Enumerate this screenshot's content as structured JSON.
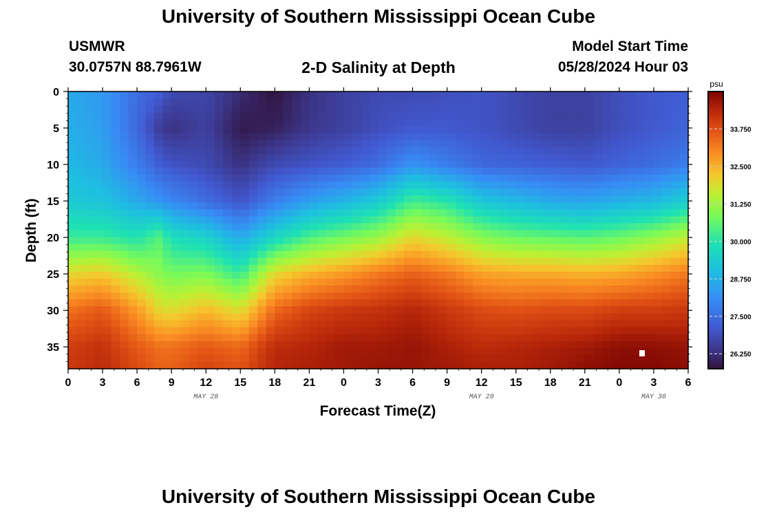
{
  "page": {
    "title": "University of Southern Mississippi Ocean Cube",
    "station": "USMWR",
    "coords": "30.0757N  88.7961W",
    "subtitle": "2-D Salinity at Depth",
    "start_label": "Model Start Time",
    "start_value": "05/28/2024 Hour 03",
    "footer_title": "University of Southern Mississippi Ocean Cube"
  },
  "chart_data": {
    "type": "heatmap",
    "title": "2-D Salinity at Depth",
    "xlabel": "Forecast Time(Z)",
    "ylabel": "Depth (ft)",
    "x_tick_labels": [
      "0",
      "3",
      "6",
      "9",
      "12",
      "15",
      "18",
      "21",
      "0",
      "3",
      "6",
      "9",
      "12",
      "15",
      "18",
      "21",
      "0",
      "3",
      "6"
    ],
    "date_labels": [
      {
        "text": "MAY 28",
        "at_tick": 4
      },
      {
        "text": "MAY 29",
        "at_tick": 12
      },
      {
        "text": "MAY 30",
        "at_tick": 17
      }
    ],
    "x_range_hours": [
      0,
      54
    ],
    "y_ticks": [
      0,
      5,
      10,
      15,
      20,
      25,
      30,
      35
    ],
    "ylim": [
      0,
      38
    ],
    "colorbar": {
      "unit": "psu",
      "tick_labels": [
        "33.750",
        "32.500",
        "31.250",
        "30.000",
        "28.750",
        "27.500",
        "26.250"
      ],
      "tick_values": [
        33.75,
        32.5,
        31.25,
        30.0,
        28.75,
        27.5,
        26.25
      ],
      "range": [
        25.75,
        35.0
      ]
    },
    "profile_columns_hours": [
      0,
      3,
      6,
      8,
      9,
      12,
      15,
      18,
      21,
      24,
      27,
      30,
      33,
      36,
      39,
      42,
      45,
      48,
      51,
      54
    ],
    "profile_depths_ft": [
      0,
      5,
      10,
      15,
      20,
      25,
      30,
      35,
      38
    ],
    "salinity_psu": [
      [
        28.6,
        28.7,
        28.9,
        29.3,
        30.2,
        32.0,
        33.3,
        34.0,
        34.1
      ],
      [
        28.3,
        28.4,
        28.6,
        29.1,
        30.2,
        32.2,
        33.6,
        34.2,
        34.3
      ],
      [
        27.5,
        27.4,
        27.8,
        28.6,
        29.9,
        31.5,
        32.8,
        33.6,
        33.8
      ],
      [
        27.2,
        26.5,
        27.2,
        28.2,
        30.5,
        31.0,
        32.0,
        33.3,
        33.5
      ],
      [
        26.8,
        26.3,
        27.0,
        28.0,
        29.8,
        30.8,
        31.9,
        33.3,
        33.5
      ],
      [
        26.7,
        26.6,
        26.8,
        27.5,
        29.5,
        30.9,
        32.4,
        33.6,
        33.9
      ],
      [
        26.2,
        25.9,
        26.3,
        27.0,
        28.6,
        30.2,
        31.9,
        33.4,
        33.7
      ],
      [
        25.8,
        26.0,
        26.8,
        27.8,
        29.6,
        32.0,
        33.4,
        34.3,
        34.4
      ],
      [
        26.3,
        26.4,
        27.0,
        28.4,
        30.4,
        32.5,
        33.9,
        34.4,
        34.5
      ],
      [
        26.6,
        26.6,
        27.2,
        28.8,
        30.8,
        32.8,
        34.1,
        34.6,
        34.6
      ],
      [
        26.8,
        26.9,
        27.5,
        29.3,
        31.2,
        33.2,
        34.2,
        34.6,
        34.7
      ],
      [
        26.8,
        27.1,
        28.2,
        30.3,
        32.0,
        33.5,
        34.4,
        34.7,
        34.7
      ],
      [
        26.9,
        27.1,
        27.8,
        30.0,
        31.6,
        33.2,
        34.1,
        34.5,
        34.6
      ],
      [
        27.0,
        27.0,
        27.4,
        29.2,
        31.0,
        32.7,
        33.8,
        34.3,
        34.5
      ],
      [
        26.8,
        26.8,
        27.3,
        28.9,
        30.7,
        32.6,
        33.7,
        34.4,
        34.5
      ],
      [
        26.6,
        26.6,
        27.2,
        28.6,
        30.6,
        32.6,
        33.8,
        34.5,
        34.6
      ],
      [
        26.6,
        26.6,
        27.1,
        28.5,
        30.5,
        32.5,
        33.8,
        34.6,
        34.8
      ],
      [
        26.9,
        26.9,
        27.3,
        28.7,
        30.7,
        32.6,
        34.0,
        34.8,
        34.9
      ],
      [
        27.1,
        27.1,
        27.5,
        28.9,
        31.1,
        32.9,
        34.0,
        34.8,
        34.9
      ],
      [
        27.2,
        27.3,
        27.8,
        29.4,
        31.6,
        33.2,
        34.1,
        34.7,
        34.8
      ]
    ]
  }
}
